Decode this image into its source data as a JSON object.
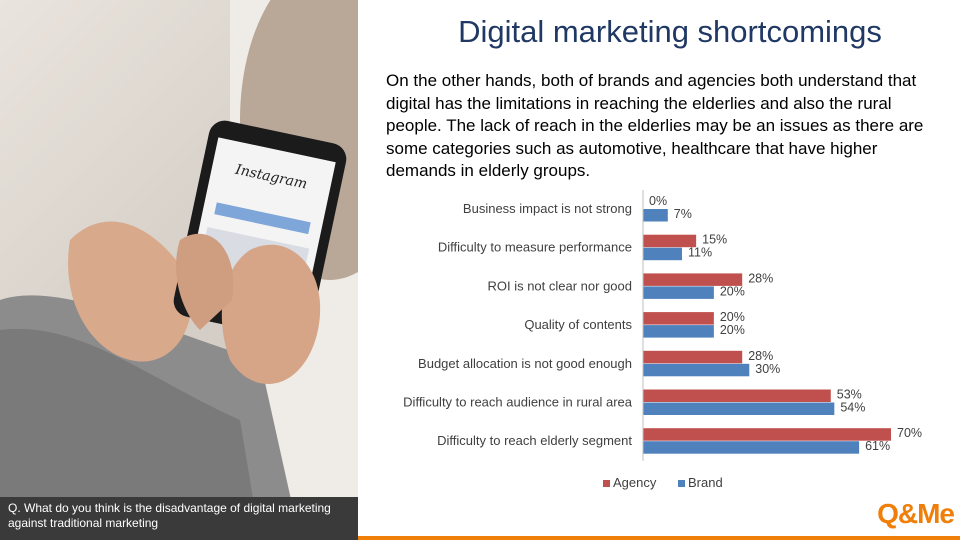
{
  "title": "Digital marketing shortcomings",
  "description": "On the other hands, both of brands and agencies both understand that digital has the limitations in reaching the elderlies and also the rural people. The lack of reach in the elderlies may be an issues as there are some categories such as automotive, healthcare that have higher demands in elderly groups.",
  "caption": "Q. What do you think is the disadvantage  of digital marketing against traditional marketing",
  "logo": "Q&Me",
  "phone_app_text": "Instagram",
  "colors": {
    "agency": "#c0504d",
    "brand": "#4f81bd",
    "logo": "#f07f09",
    "title": "#1f3864"
  },
  "chart_data": {
    "type": "bar",
    "orientation": "horizontal",
    "categories": [
      "Business impact is not strong",
      "Difficulty to measure performance",
      "ROI is not clear nor good",
      "Quality of contents",
      "Budget allocation is not good enough",
      "Difficulty to reach audience in rural area",
      "Difficulty to reach elderly segment"
    ],
    "series": [
      {
        "name": "Agency",
        "values": [
          0,
          15,
          28,
          20,
          28,
          53,
          70
        ]
      },
      {
        "name": "Brand",
        "values": [
          7,
          11,
          20,
          20,
          30,
          54,
          61
        ]
      }
    ],
    "value_suffix": "%",
    "xlim": [
      0,
      70
    ],
    "legend": "bottom",
    "grid": false
  }
}
